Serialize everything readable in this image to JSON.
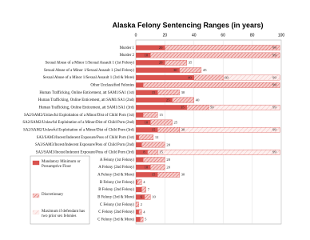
{
  "chart_data": {
    "type": "range-bar",
    "title": "Alaska Felony Sentencing Ranges (in years)",
    "categories": [
      "Murder 1",
      "Murder 2",
      "Sexual Abuse of a Minor 1/Sexual Assault 1 (1st Felony)",
      "Sexual Abuse of a Minor 1/Sexual Assault 1 (2nd Felony)",
      "Sexual Abuse of a Minor 1/Sexual Assault 1 (3rd & More)",
      "Other Unclassified Felonies",
      "Human Trafficking, Online Enticement, att SAM1/SA1 (1st)",
      "Human Trafficking, Online Enticement, att SAM1/SA1 (2nd)",
      "Human Trafficking, Online Enticement, att SAM1/SA1 (3rd)",
      "SA2/SAM2/Unlawful Exploitation of a Minor/Dist of Child Porn (1st)",
      "SA2/SAM2/Unlawful Exploitation of a Minor/Dist of Child Porn (2nd)",
      "SA2/SAM2/Unlawful Exploitation of a Minor/Dist of Child Porn (3rd)",
      "SA3/SAM3/Incest/Indecent Exposure/Poss of Child Porn (1st)",
      "SA3/SAM3/Incest/Indecent Exposure/Poss of Child Porn (2nd)",
      "SA3/SAM3/Incest/Indecent Exposure/Poss of Child Porn (3rd)",
      "A Felony (1st Felony)",
      "A Felony (2nd Felony)",
      "A Felony (3rd & More)",
      "B Felony (1st Felony)",
      "B Felony (2nd Felony)",
      "B Felony (3rd & More)",
      "C Felony (1st Felony)",
      "C Felony (2nd Felony)",
      "C Felony (3rd & More)"
    ],
    "series": [
      {
        "name": "Mandatory Minimum or Presumptive Floor",
        "color": "#d9534f",
        "values": [
          20,
          10,
          20,
          30,
          40,
          5,
          15,
          25,
          35,
          5,
          10,
          15,
          2,
          4,
          8,
          5,
          10,
          15,
          1,
          4,
          6,
          0,
          2,
          3
        ]
      },
      {
        "name": "Discretionary",
        "color": "#f2b8b6",
        "values": [
          99,
          99,
          35,
          45,
          60,
          99,
          30,
          40,
          50,
          15,
          25,
          30,
          12,
          20,
          15,
          20,
          20,
          30,
          4,
          7,
          10,
          2,
          4,
          5
        ]
      },
      {
        "name": "Maximum if defendant has two prior sex felonies",
        "color": "#fbe3e2",
        "values": [
          null,
          null,
          null,
          null,
          99,
          null,
          null,
          null,
          99,
          null,
          null,
          99,
          null,
          null,
          99,
          null,
          null,
          null,
          null,
          null,
          null,
          null,
          null,
          null
        ]
      }
    ],
    "xlim": [
      0,
      100
    ],
    "xticks": [
      0,
      20,
      40,
      60,
      80,
      100
    ],
    "grid": true
  }
}
